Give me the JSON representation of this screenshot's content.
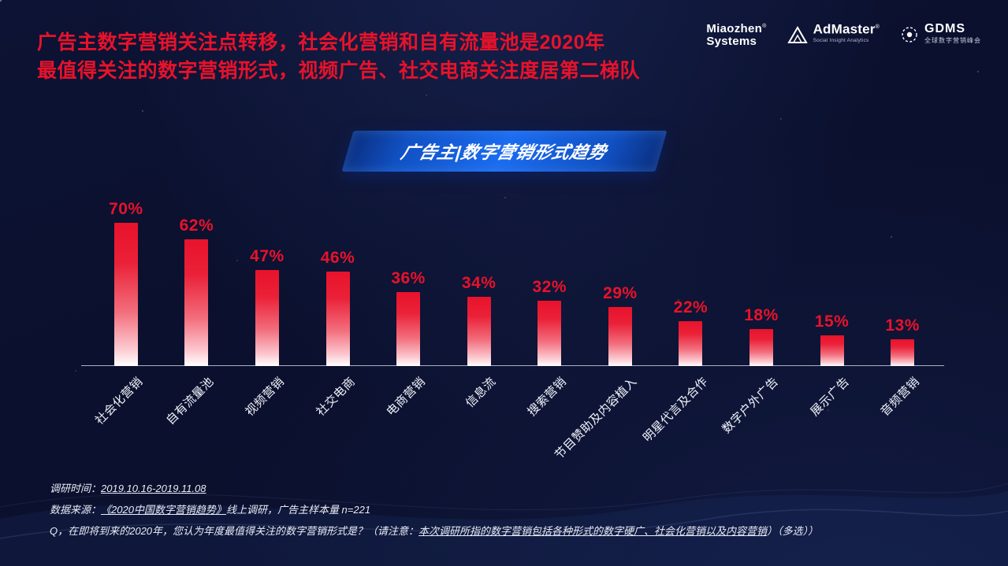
{
  "slide": {
    "title_line1": "广告主数字营销关注点转移，社会化营销和自有流量池是2020年",
    "title_line2": "最值得关注的数字营销形式，视频广告、社交电商关注度居第二梯队",
    "banner_title": "广告主|数字营销形式趋势"
  },
  "logos": {
    "miaozhen": {
      "line1": "Miaozhen",
      "reg": "®",
      "line2": "Systems"
    },
    "admaster": {
      "label": "AdMaster",
      "reg": "®",
      "tagline": "Social Insight Analytics"
    },
    "gdms": {
      "label": "GDMS",
      "tagline": "全球数字营销峰会"
    }
  },
  "chart_data": {
    "type": "bar",
    "title": "广告主|数字营销形式趋势",
    "categories": [
      "社会化营销",
      "自有流量池",
      "视频营销",
      "社交电商",
      "电商营销",
      "信息流",
      "搜索营销",
      "节目赞助及内容植入",
      "明星代言及合作",
      "数字户外广告",
      "展示广告",
      "音频营销"
    ],
    "values": [
      70,
      62,
      47,
      46,
      36,
      34,
      32,
      29,
      22,
      18,
      15,
      13
    ],
    "unit": "%",
    "ylim": [
      0,
      75
    ],
    "grid": false,
    "legend": "none",
    "bar_color_top": "#e8122b",
    "bar_color_bottom": "#ffffff",
    "value_label_color": "#e8122b",
    "category_label_color": "#f2f4fa",
    "xlabel": "",
    "ylabel": ""
  },
  "footer": {
    "line1_label": "调研时间：",
    "line1_value": "2019.10.16-2019.11.08",
    "line2_label": "数据来源：",
    "line2_value": "《2020中国数字营销趋势》",
    "line2_rest": "线上调研，广告主样本量 n=221",
    "line3_prefix": "Q，在即将到来的2020年，您认为年度最值得关注的数字营销形式是？（请注意：",
    "line3_underlined": "本次调研所指的数字营销包括各种形式的数字硬广、社会化营销以及内容营销",
    "line3_suffix": "）（多选））"
  },
  "colors": {
    "background": "#0b102e",
    "title_red": "#e8122b",
    "banner_blue": "#1b6cf0",
    "axis": "#aab0c2"
  }
}
